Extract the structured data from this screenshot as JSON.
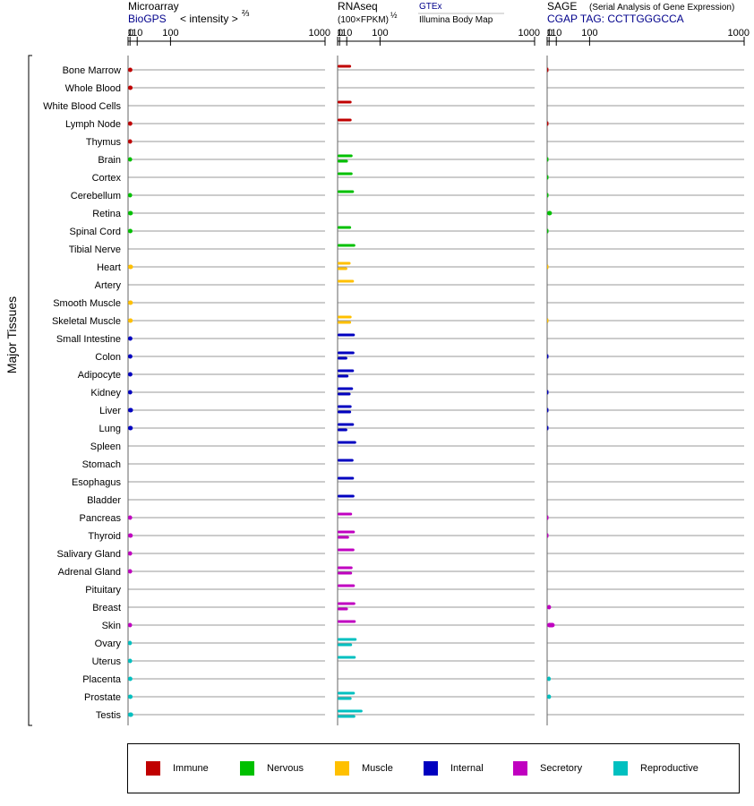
{
  "chart_data": {
    "type": "bar",
    "y_axis_title": "Major Tissues",
    "panels": [
      {
        "id": "microarray",
        "title": "Microarray",
        "subtitle": "BioGPS",
        "subtitle_color": "#00008b",
        "metric_label": "< intensity >",
        "metric_exponent": "⅔",
        "ticks": [
          "0",
          "1",
          "10",
          "100",
          "1000"
        ]
      },
      {
        "id": "rnaseq",
        "title": "RNAseq",
        "subtitle": "(100×FPKM)",
        "subtitle_exponent": "½",
        "source_primary": "GTEx",
        "source_primary_color": "#00008b",
        "source_secondary": "Illumina Body Map",
        "ticks": [
          "0",
          "1",
          "10",
          "100",
          "1000"
        ]
      },
      {
        "id": "sage",
        "title": "SAGE",
        "title_note": "(Serial Analysis of Gene Expression)",
        "subtitle": "CGAP TAG: CCTTGGGCCA",
        "subtitle_color": "#00008b",
        "ticks": [
          "0",
          "1",
          "10",
          "100",
          "1000"
        ]
      }
    ],
    "tissues": [
      "Bone Marrow",
      "Whole Blood",
      "White Blood Cells",
      "Lymph Node",
      "Thymus",
      "Brain",
      "Cortex",
      "Cerebellum",
      "Retina",
      "Spinal Cord",
      "Tibial Nerve",
      "Heart",
      "Artery",
      "Smooth Muscle",
      "Skeletal Muscle",
      "Small Intestine",
      "Colon",
      "Adipocyte",
      "Kidney",
      "Liver",
      "Lung",
      "Spleen",
      "Stomach",
      "Esophagus",
      "Bladder",
      "Pancreas",
      "Thyroid",
      "Salivary Gland",
      "Adrenal Gland",
      "Pituitary",
      "Breast",
      "Skin",
      "Ovary",
      "Uterus",
      "Placenta",
      "Prostate",
      "Testis"
    ],
    "tissue_group": [
      "Immune",
      "Immune",
      "Immune",
      "Immune",
      "Immune",
      "Nervous",
      "Nervous",
      "Nervous",
      "Nervous",
      "Nervous",
      "Nervous",
      "Muscle",
      "Muscle",
      "Muscle",
      "Muscle",
      "Internal",
      "Internal",
      "Internal",
      "Internal",
      "Internal",
      "Internal",
      "Internal",
      "Internal",
      "Internal",
      "Internal",
      "Secretory",
      "Secretory",
      "Secretory",
      "Secretory",
      "Secretory",
      "Secretory",
      "Secretory",
      "Reproductive",
      "Reproductive",
      "Reproductive",
      "Reproductive",
      "Reproductive"
    ],
    "groups": [
      {
        "name": "Immune",
        "color": "#c00000"
      },
      {
        "name": "Nervous",
        "color": "#00c000"
      },
      {
        "name": "Muscle",
        "color": "#ffc000"
      },
      {
        "name": "Internal",
        "color": "#0000c0"
      },
      {
        "name": "Secretory",
        "color": "#c000c0"
      },
      {
        "name": "Reproductive",
        "color": "#00c0c0"
      }
    ],
    "microarray": [
      3.3,
      3.5,
      null,
      3.2,
      3.0,
      3.0,
      null,
      3.0,
      3.8,
      3.4,
      null,
      4.0,
      null,
      3.8,
      3.7,
      3.3,
      3.3,
      3.3,
      3.1,
      4.0,
      3.7,
      null,
      null,
      null,
      null,
      3.0,
      3.7,
      3.0,
      3.0,
      null,
      null,
      2.9,
      2.7,
      3.0,
      3.3,
      3.5,
      4.2
    ],
    "rnaseq_gtex": [
      18,
      null,
      19,
      19,
      null,
      21,
      21,
      24,
      null,
      18,
      27,
      17,
      24,
      null,
      19,
      26,
      25,
      24,
      22,
      19,
      24,
      29,
      23,
      24,
      25,
      20,
      26,
      25,
      21,
      26,
      27,
      28,
      30,
      28,
      null,
      26,
      45
    ],
    "rnaseq_illumina": [
      null,
      null,
      null,
      null,
      null,
      12,
      null,
      null,
      null,
      null,
      null,
      11,
      null,
      null,
      18,
      null,
      11,
      13,
      17,
      18,
      11,
      null,
      null,
      null,
      null,
      null,
      14,
      null,
      20,
      null,
      12,
      null,
      20,
      null,
      null,
      19,
      27
    ],
    "sage": [
      0.08,
      null,
      null,
      0.1,
      null,
      0.05,
      0.05,
      0.05,
      3.8,
      0.05,
      null,
      0.05,
      null,
      null,
      0.05,
      null,
      0.1,
      null,
      0.08,
      0.08,
      0.1,
      null,
      null,
      null,
      null,
      0.1,
      0.1,
      null,
      null,
      null,
      2.8,
      7.5,
      null,
      null,
      2.5,
      2.8,
      null
    ]
  }
}
